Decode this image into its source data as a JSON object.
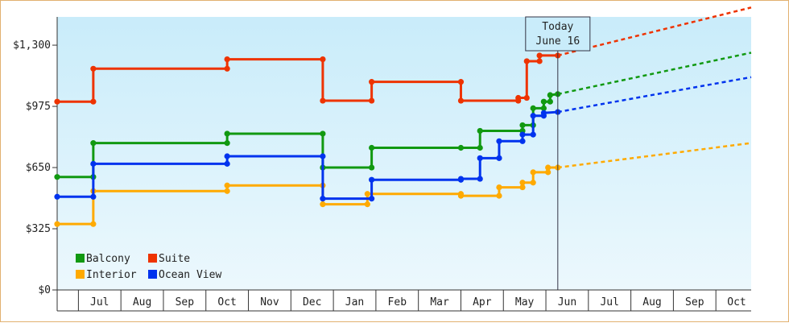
{
  "chart_data": {
    "type": "line",
    "title": "",
    "xlabel": "",
    "ylabel": "",
    "ylim": [
      0,
      1450
    ],
    "y_ticks": [
      {
        "value": 0,
        "label": "$0"
      },
      {
        "value": 325,
        "label": "$325"
      },
      {
        "value": 650,
        "label": "$650"
      },
      {
        "value": 975,
        "label": "$975"
      },
      {
        "value": 1300,
        "label": "$1,300"
      }
    ],
    "x_unit": "months since start of June (year 1)",
    "xlim": [
      0.0,
      16.33
    ],
    "month_labels": [
      {
        "label": "Jul",
        "x": 1
      },
      {
        "label": "Aug",
        "x": 2
      },
      {
        "label": "Sep",
        "x": 3
      },
      {
        "label": "Oct",
        "x": 4
      },
      {
        "label": "Nov",
        "x": 5
      },
      {
        "label": "Dec",
        "x": 6
      },
      {
        "label": "Jan",
        "x": 7
      },
      {
        "label": "Feb",
        "x": 8
      },
      {
        "label": "Mar",
        "x": 9
      },
      {
        "label": "Apr",
        "x": 10
      },
      {
        "label": "May",
        "x": 11
      },
      {
        "label": "Jun",
        "x": 12
      },
      {
        "label": "Jul",
        "x": 13
      },
      {
        "label": "Aug",
        "x": 14
      },
      {
        "label": "Sep",
        "x": 15
      },
      {
        "label": "Oct",
        "x": 16
      }
    ],
    "today": {
      "line1": "Today",
      "line2": "June 16",
      "x": 11.78
    },
    "series": [
      {
        "name": "Balcony",
        "color": "#119911",
        "points": [
          [
            0.0,
            600
          ],
          [
            0.85,
            600
          ],
          [
            0.85,
            780
          ],
          [
            4.0,
            780
          ],
          [
            4.0,
            830
          ],
          [
            6.25,
            830
          ],
          [
            6.25,
            650
          ],
          [
            7.4,
            650
          ],
          [
            7.4,
            755
          ],
          [
            9.5,
            755
          ],
          [
            9.95,
            755
          ],
          [
            9.95,
            845
          ],
          [
            10.95,
            845
          ],
          [
            10.95,
            875
          ],
          [
            11.2,
            875
          ],
          [
            11.2,
            965
          ],
          [
            11.45,
            965
          ],
          [
            11.45,
            1000
          ],
          [
            11.6,
            1000
          ],
          [
            11.6,
            1035
          ],
          [
            11.78,
            1040
          ]
        ],
        "forecast": [
          [
            11.78,
            1040
          ],
          [
            16.33,
            1260
          ]
        ]
      },
      {
        "name": "Suite",
        "color": "#ee3300",
        "points": [
          [
            0.0,
            1000
          ],
          [
            0.85,
            1000
          ],
          [
            0.85,
            1175
          ],
          [
            4.0,
            1175
          ],
          [
            4.0,
            1225
          ],
          [
            6.25,
            1225
          ],
          [
            6.25,
            1005
          ],
          [
            7.4,
            1005
          ],
          [
            7.4,
            1105
          ],
          [
            9.5,
            1105
          ],
          [
            9.5,
            1005
          ],
          [
            10.85,
            1005
          ],
          [
            10.85,
            1020
          ],
          [
            11.05,
            1020
          ],
          [
            11.05,
            1215
          ],
          [
            11.35,
            1215
          ],
          [
            11.35,
            1245
          ],
          [
            11.78,
            1245
          ]
        ],
        "forecast": [
          [
            11.78,
            1245
          ],
          [
            16.33,
            1500
          ]
        ]
      },
      {
        "name": "Interior",
        "color": "#ffaa00",
        "points": [
          [
            0.0,
            350
          ],
          [
            0.85,
            350
          ],
          [
            0.85,
            525
          ],
          [
            4.0,
            525
          ],
          [
            4.0,
            555
          ],
          [
            6.25,
            555
          ],
          [
            6.25,
            455
          ],
          [
            7.3,
            455
          ],
          [
            7.3,
            510
          ],
          [
            9.5,
            510
          ],
          [
            9.5,
            500
          ],
          [
            10.4,
            500
          ],
          [
            10.4,
            545
          ],
          [
            10.95,
            545
          ],
          [
            10.95,
            570
          ],
          [
            11.2,
            570
          ],
          [
            11.2,
            625
          ],
          [
            11.55,
            625
          ],
          [
            11.55,
            650
          ],
          [
            11.78,
            650
          ]
        ],
        "forecast": [
          [
            11.78,
            650
          ],
          [
            16.33,
            780
          ]
        ]
      },
      {
        "name": "Ocean View",
        "color": "#0033ee",
        "points": [
          [
            0.0,
            495
          ],
          [
            0.85,
            495
          ],
          [
            0.85,
            670
          ],
          [
            4.0,
            670
          ],
          [
            4.0,
            710
          ],
          [
            6.25,
            710
          ],
          [
            6.25,
            485
          ],
          [
            7.4,
            485
          ],
          [
            7.4,
            585
          ],
          [
            9.5,
            585
          ],
          [
            9.5,
            590
          ],
          [
            9.95,
            590
          ],
          [
            9.95,
            700
          ],
          [
            10.4,
            700
          ],
          [
            10.4,
            790
          ],
          [
            10.95,
            790
          ],
          [
            10.95,
            825
          ],
          [
            11.2,
            825
          ],
          [
            11.2,
            925
          ],
          [
            11.45,
            925
          ],
          [
            11.45,
            940
          ],
          [
            11.78,
            945
          ]
        ],
        "forecast": [
          [
            11.78,
            945
          ],
          [
            16.33,
            1130
          ]
        ]
      }
    ]
  }
}
